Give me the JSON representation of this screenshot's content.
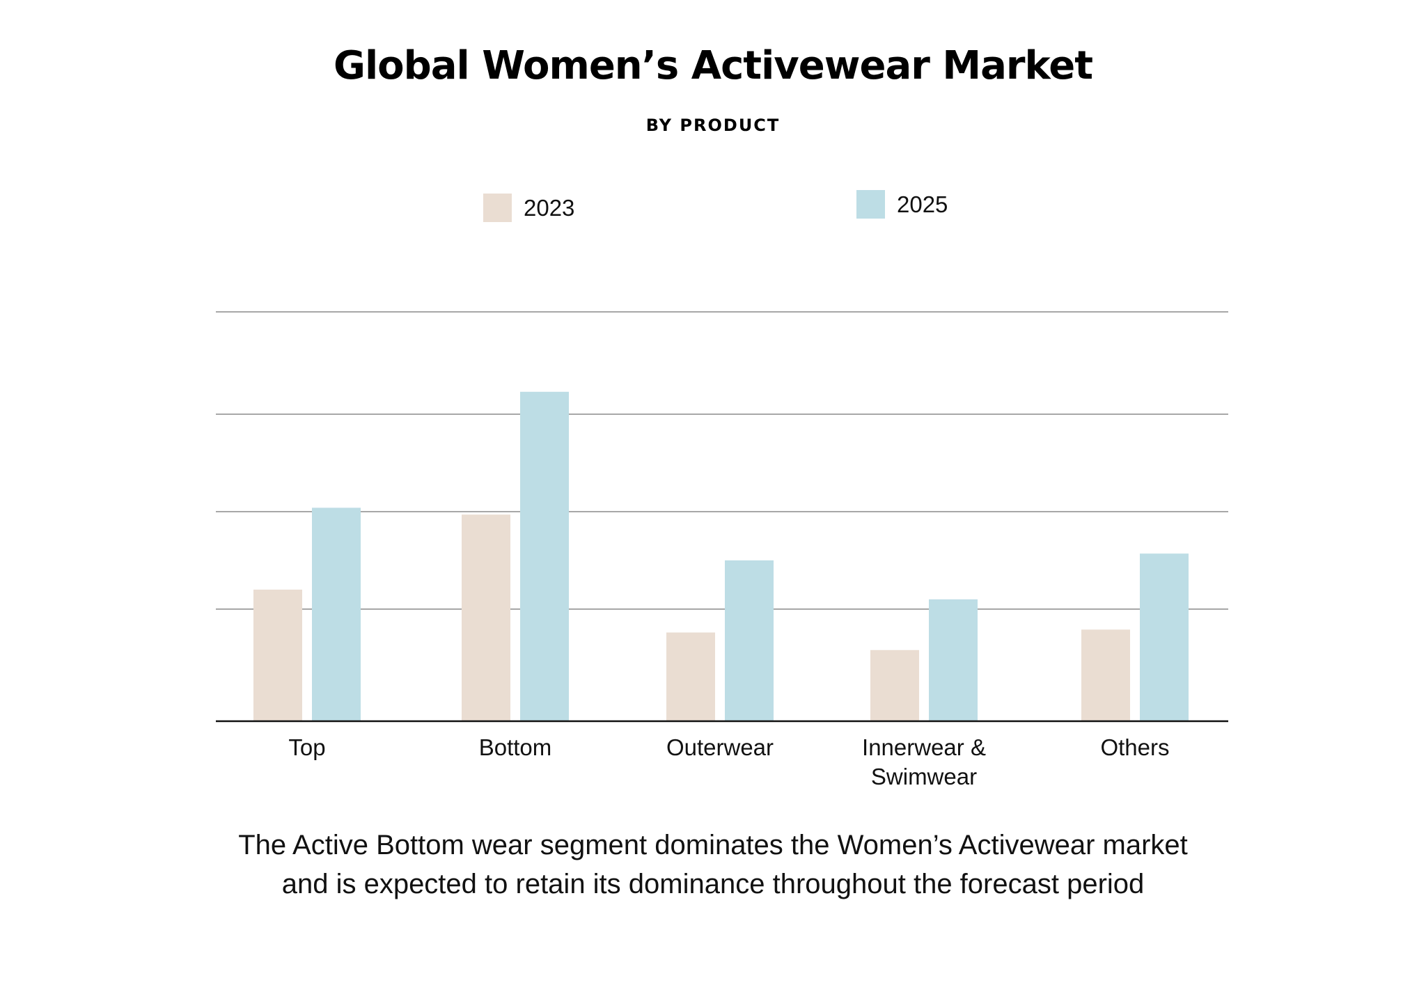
{
  "chart_data": {
    "type": "bar",
    "title": "Global Women’s Activewear Market",
    "subtitle": "BY PRODUCT",
    "categories": [
      [
        "Top"
      ],
      [
        "Bottom"
      ],
      [
        "Outerwear"
      ],
      [
        "Innerwear &",
        "Swimwear"
      ],
      [
        "Others"
      ]
    ],
    "series": [
      {
        "name": "2023",
        "color": "#EADDD2",
        "values": [
          1.35,
          2.12,
          0.91,
          0.73,
          0.94
        ]
      },
      {
        "name": "2025",
        "color": "#BDDDE5",
        "values": [
          2.19,
          3.38,
          1.65,
          1.25,
          1.72
        ]
      }
    ],
    "ylim": [
      0,
      4.2
    ],
    "gridlines": [
      1.15,
      2.15,
      3.15,
      4.2
    ],
    "grid": true,
    "legend": "top-center",
    "xlabel": "",
    "ylabel": ""
  },
  "caption": {
    "line1": "The Active Bottom wear segment dominates the Women’s Activewear market",
    "line2": "and is expected to retain its dominance throughout the forecast period"
  }
}
